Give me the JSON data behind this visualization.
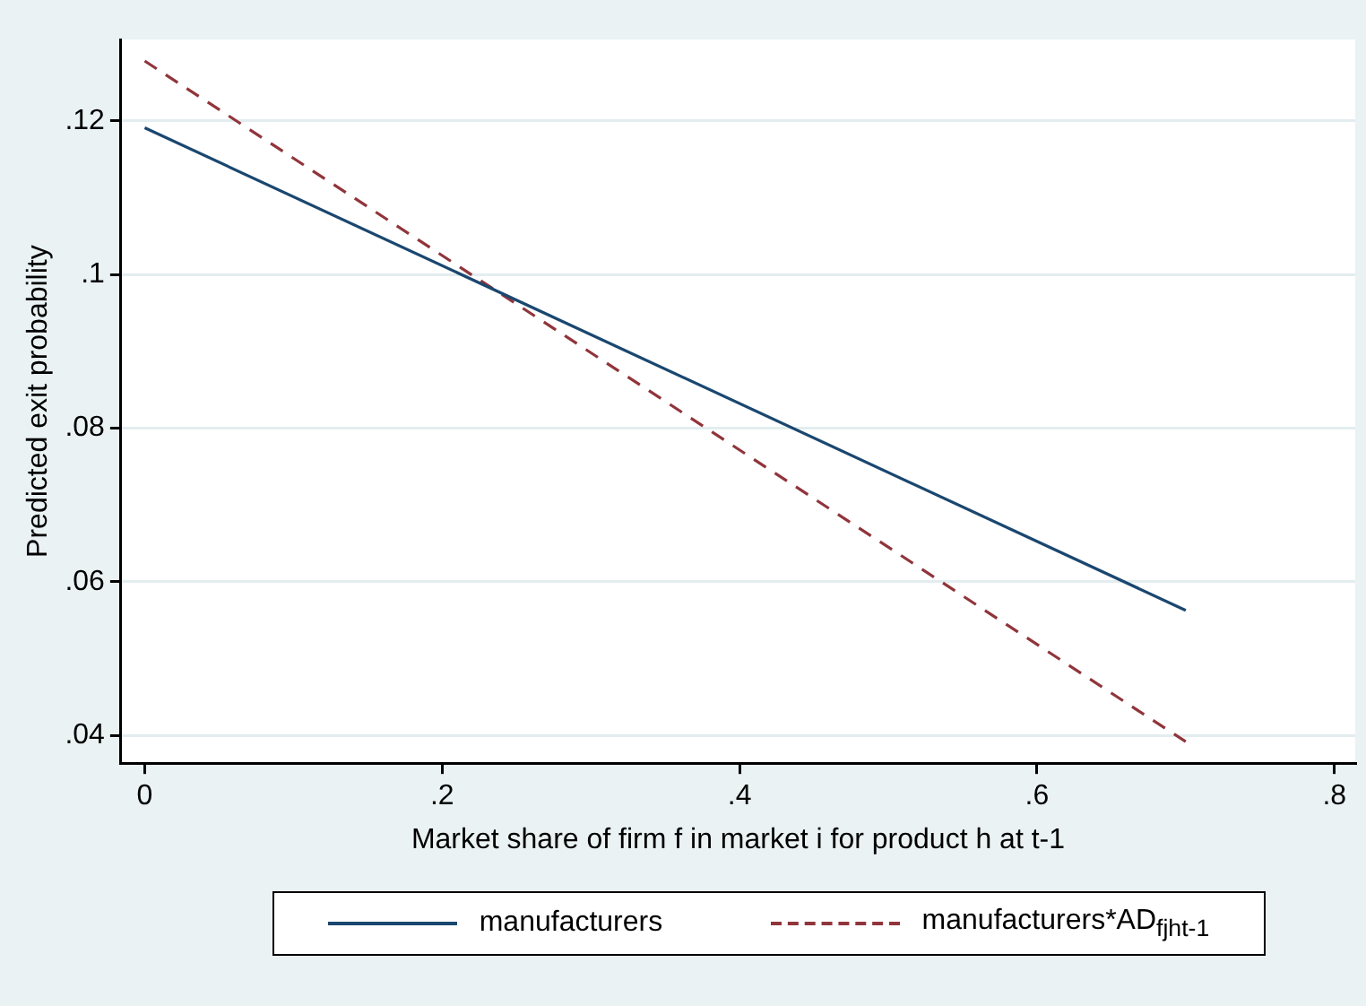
{
  "chart_data": {
    "type": "line",
    "xlabel": "Market share of firm f in market i for product h at t-1",
    "ylabel": "Predicted exit probability",
    "xlim": [
      -0.016,
      0.814
    ],
    "ylim": [
      0.0364,
      0.1306
    ],
    "xticks": [
      0,
      {
        "value": 0.2,
        "label": ".2"
      },
      {
        "value": 0.4,
        "label": ".4"
      },
      {
        "value": 0.6,
        "label": ".6"
      },
      {
        "value": 0.8,
        "label": ".8"
      }
    ],
    "yticks": [
      {
        "value": 0.04,
        "label": ".04"
      },
      {
        "value": 0.06,
        "label": ".06"
      },
      {
        "value": 0.08,
        "label": ".08"
      },
      {
        "value": 0.1,
        "label": ".1"
      },
      {
        "value": 0.12,
        "label": ".12"
      }
    ],
    "x": [
      0,
      0.7
    ],
    "grid": "y",
    "legend": "bottom",
    "marker": "none",
    "series": [
      {
        "name": "manufacturers",
        "color": "#1a476f",
        "values": [
          0.1191,
          0.0563
        ],
        "line_style": "solid"
      },
      {
        "name": "manufacturers*AD$_{fjht-1}$",
        "color": "#90353b",
        "values": [
          0.1278,
          0.0392
        ],
        "line_style": "dashed"
      }
    ]
  }
}
